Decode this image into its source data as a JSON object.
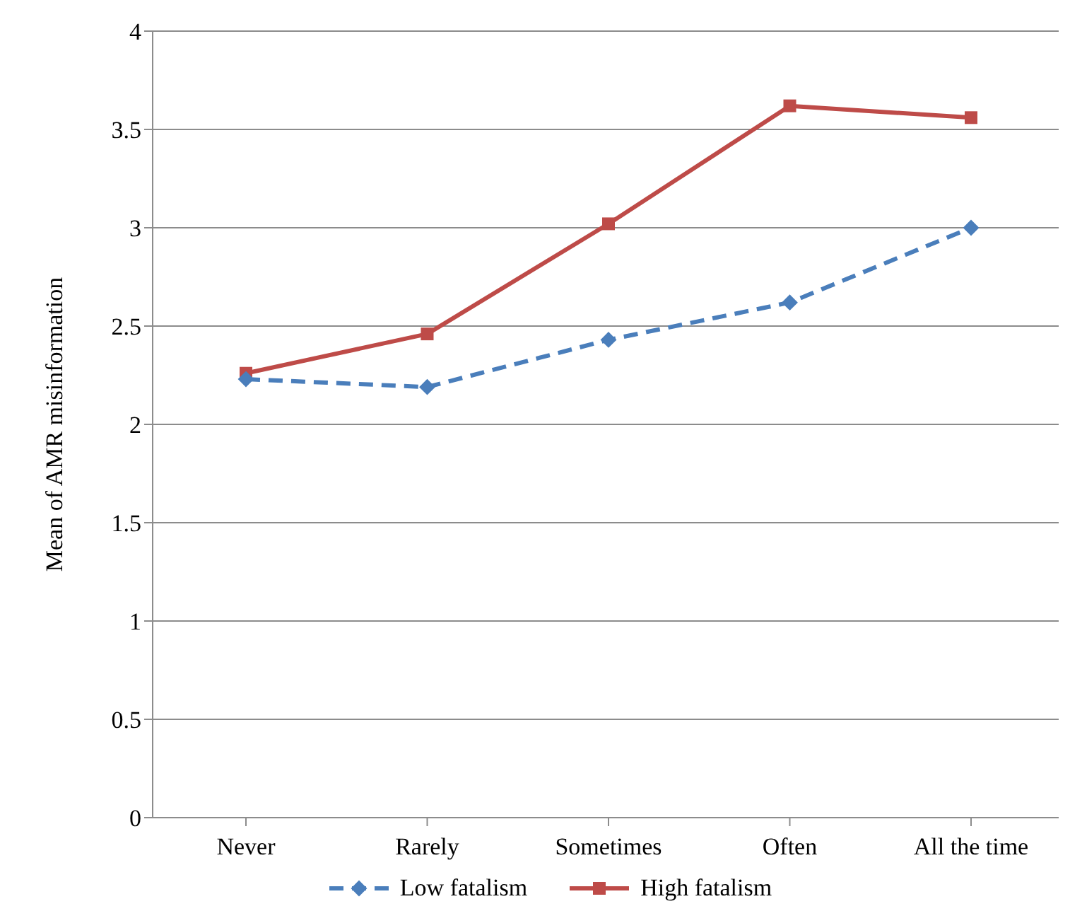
{
  "chart_data": {
    "type": "line",
    "ylabel": "Mean of AMR misinformation",
    "categories": [
      "Never",
      "Rarely",
      "Sometimes",
      "Often",
      "All the time"
    ],
    "series": [
      {
        "name": "Low fatalism",
        "color": "#4a7ebb",
        "values": [
          2.23,
          2.19,
          2.43,
          2.62,
          3.0
        ],
        "marker": "diamond",
        "line_style": "dashed"
      },
      {
        "name": "High fatalism",
        "color": "#be4b48",
        "values": [
          2.26,
          2.46,
          3.02,
          3.62,
          3.56
        ],
        "marker": "square",
        "line_style": "solid"
      }
    ],
    "ylim": [
      0,
      4
    ],
    "yticks": [
      0,
      0.5,
      1,
      1.5,
      2,
      2.5,
      3,
      3.5,
      4
    ],
    "grid": "y",
    "legend": "bottom"
  }
}
